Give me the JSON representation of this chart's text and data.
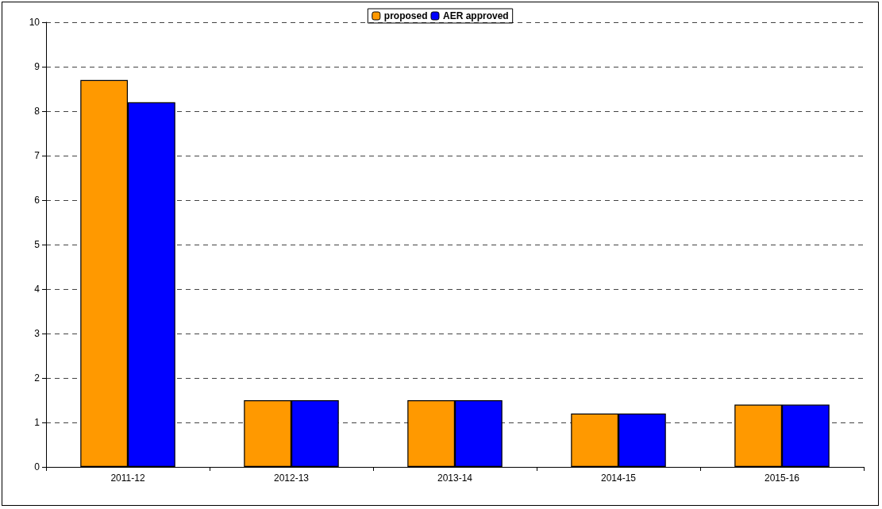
{
  "chart_data": {
    "type": "bar",
    "categories": [
      "2011-12",
      "2012-13",
      "2013-14",
      "2014-15",
      "2015-16"
    ],
    "series": [
      {
        "name": "proposed",
        "color": "#ff9900",
        "values": [
          8.7,
          1.5,
          1.5,
          1.2,
          1.4
        ]
      },
      {
        "name": "AER approved",
        "color": "#0000ff",
        "values": [
          8.2,
          1.5,
          1.5,
          1.2,
          1.4
        ]
      }
    ],
    "ylim": [
      0,
      10
    ],
    "yticks": [
      0,
      1,
      2,
      3,
      4,
      5,
      6,
      7,
      8,
      9,
      10
    ],
    "grid": "y",
    "legend": "top"
  }
}
